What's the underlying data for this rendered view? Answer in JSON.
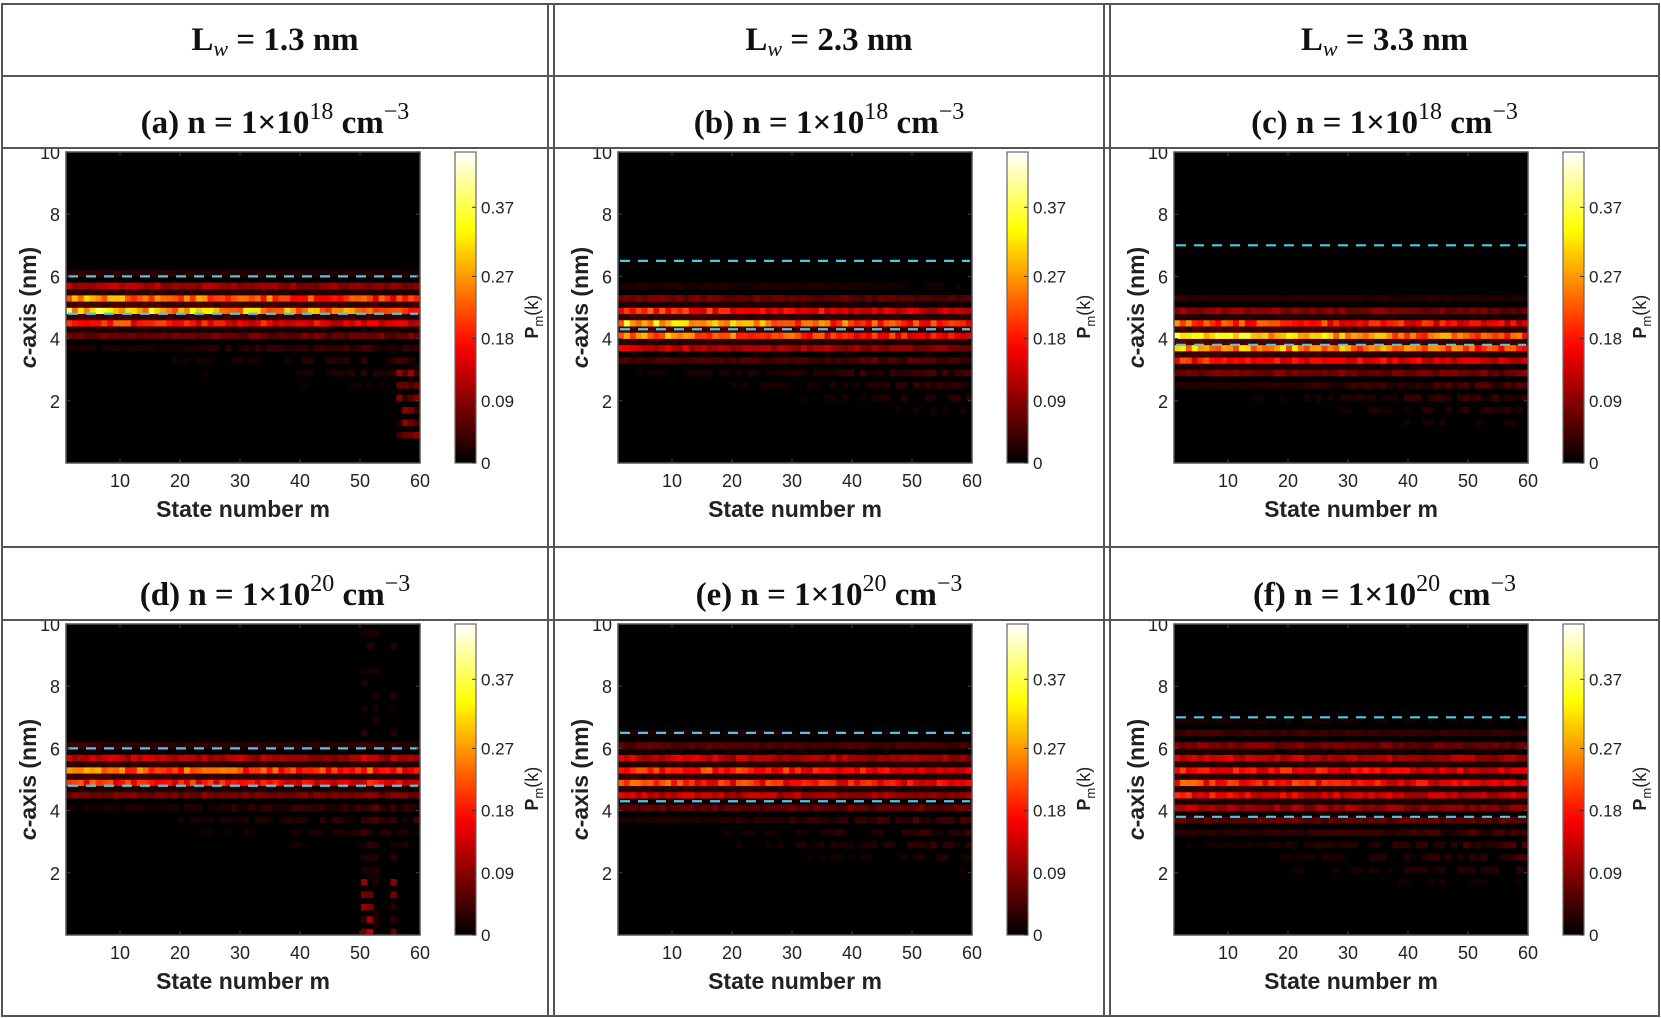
{
  "columns": [
    {
      "prefix": "L",
      "sub": "w",
      "text": " = 1.3 nm"
    },
    {
      "prefix": "L",
      "sub": "w",
      "text": " = 2.3 nm"
    },
    {
      "prefix": "L",
      "sub": "w",
      "text": " = 3.3 nm"
    }
  ],
  "panel_titles": [
    {
      "label": "(a) n = 1×10",
      "exp": "18",
      "unit": " cm",
      "unit_exp": "−3"
    },
    {
      "label": "(b) n = 1×10",
      "exp": "18",
      "unit": " cm",
      "unit_exp": "−3"
    },
    {
      "label": "(c) n = 1×10",
      "exp": "18",
      "unit": " cm",
      "unit_exp": "−3"
    },
    {
      "label": "(d) n = 1×10",
      "exp": "20",
      "unit": " cm",
      "unit_exp": "−3"
    },
    {
      "label": "(e) n = 1×10",
      "exp": "20",
      "unit": " cm",
      "unit_exp": "−3"
    },
    {
      "label": "(f) n = 1×10",
      "exp": "20",
      "unit": " cm",
      "unit_exp": "−3"
    }
  ],
  "colors": {
    "dash_line": "#4fc8e8",
    "background": "#000000",
    "border": "#555555"
  },
  "chart_data": [
    {
      "id": "a",
      "type": "heatmap",
      "xlabel": "State number m",
      "ylabel": "c-axis (nm)",
      "colorbar_label": "P_m(k)",
      "xlim": [
        1,
        60
      ],
      "ylim": [
        0,
        10
      ],
      "x_ticks": [
        10,
        20,
        30,
        40,
        50,
        60
      ],
      "y_ticks": [
        2,
        4,
        6,
        8,
        10
      ],
      "colorbar_ticks": [
        0,
        0.09,
        0.18,
        0.27,
        0.37
      ],
      "clim": [
        0,
        0.45
      ],
      "well_bounds": [
        4.8,
        6.0
      ],
      "peak_center": 5.0,
      "spread": 0.9,
      "peak_value": 0.33,
      "decay": 0.35,
      "extra": "low_tail_m58"
    },
    {
      "id": "b",
      "type": "heatmap",
      "xlabel": "State number m",
      "ylabel": "c-axis (nm)",
      "colorbar_label": "P_m(k)",
      "xlim": [
        1,
        60
      ],
      "ylim": [
        0,
        10
      ],
      "x_ticks": [
        10,
        20,
        30,
        40,
        50,
        60
      ],
      "y_ticks": [
        2,
        4,
        6,
        8,
        10
      ],
      "colorbar_ticks": [
        0,
        0.09,
        0.18,
        0.27,
        0.37
      ],
      "clim": [
        0,
        0.45
      ],
      "well_bounds": [
        4.3,
        6.5
      ],
      "peak_center": 4.4,
      "spread": 1.0,
      "peak_value": 0.3,
      "decay": 0.4,
      "extra": "none"
    },
    {
      "id": "c",
      "type": "heatmap",
      "xlabel": "State number m",
      "ylabel": "c-axis (nm)",
      "colorbar_label": "P_m(k)",
      "xlim": [
        1,
        60
      ],
      "ylim": [
        0,
        10
      ],
      "x_ticks": [
        10,
        20,
        30,
        40,
        50,
        60
      ],
      "y_ticks": [
        2,
        4,
        6,
        8,
        10
      ],
      "colorbar_ticks": [
        0,
        0.09,
        0.18,
        0.27,
        0.37
      ],
      "clim": [
        0,
        0.45
      ],
      "well_bounds": [
        3.8,
        7.0
      ],
      "peak_center": 3.95,
      "spread": 1.1,
      "peak_value": 0.33,
      "decay": 0.35,
      "extra": "none"
    },
    {
      "id": "d",
      "type": "heatmap",
      "xlabel": "State number m",
      "ylabel": "c-axis (nm)",
      "colorbar_label": "P_m(k)",
      "xlim": [
        1,
        60
      ],
      "ylim": [
        0,
        10
      ],
      "x_ticks": [
        10,
        20,
        30,
        40,
        50,
        60
      ],
      "y_ticks": [
        2,
        4,
        6,
        8,
        10
      ],
      "colorbar_ticks": [
        0,
        0.09,
        0.18,
        0.27,
        0.37
      ],
      "clim": [
        0,
        0.45
      ],
      "well_bounds": [
        4.8,
        6.0
      ],
      "peak_center": 5.2,
      "spread": 0.8,
      "peak_value": 0.25,
      "decay": 0.3,
      "extra": "columns_m52"
    },
    {
      "id": "e",
      "type": "heatmap",
      "xlabel": "State number m",
      "ylabel": "c-axis (nm)",
      "colorbar_label": "P_m(k)",
      "xlim": [
        1,
        60
      ],
      "ylim": [
        0,
        10
      ],
      "x_ticks": [
        10,
        20,
        30,
        40,
        50,
        60
      ],
      "y_ticks": [
        2,
        4,
        6,
        8,
        10
      ],
      "colorbar_ticks": [
        0,
        0.09,
        0.18,
        0.27,
        0.37
      ],
      "clim": [
        0,
        0.45
      ],
      "well_bounds": [
        4.3,
        6.5
      ],
      "peak_center": 5.1,
      "spread": 1.1,
      "peak_value": 0.22,
      "decay": 0.3,
      "extra": "none"
    },
    {
      "id": "f",
      "type": "heatmap",
      "xlabel": "State number m",
      "ylabel": "c-axis (nm)",
      "colorbar_label": "P_m(k)",
      "xlim": [
        1,
        60
      ],
      "ylim": [
        0,
        10
      ],
      "x_ticks": [
        10,
        20,
        30,
        40,
        50,
        60
      ],
      "y_ticks": [
        2,
        4,
        6,
        8,
        10
      ],
      "colorbar_ticks": [
        0,
        0.09,
        0.18,
        0.27,
        0.37
      ],
      "clim": [
        0,
        0.45
      ],
      "well_bounds": [
        3.8,
        7.0
      ],
      "peak_center": 5.0,
      "spread": 1.5,
      "peak_value": 0.2,
      "decay": 0.3,
      "extra": "none"
    }
  ]
}
